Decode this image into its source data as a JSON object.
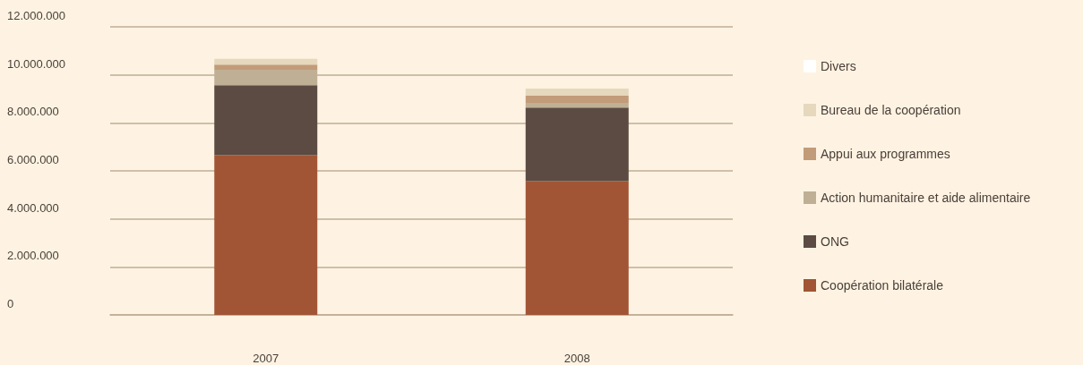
{
  "chart_data": {
    "type": "bar",
    "stacked": true,
    "categories": [
      "2007",
      "2008"
    ],
    "series": [
      {
        "name": "Coopération bilatérale",
        "color": "#a15535",
        "values": [
          6650000,
          5570000
        ]
      },
      {
        "name": "ONG",
        "color": "#5b4b42",
        "values": [
          2920000,
          3070000
        ]
      },
      {
        "name": "Action humanitaire et aide alimentaire",
        "color": "#bfaf95",
        "values": [
          640000,
          190000
        ]
      },
      {
        "name": "Appui aux programmes",
        "color": "#c29b79",
        "values": [
          220000,
          300000
        ]
      },
      {
        "name": "Bureau de la coopération",
        "color": "#e5d8bc",
        "values": [
          240000,
          300000
        ]
      },
      {
        "name": "Divers",
        "color": "#ffffff",
        "values": [
          0,
          0
        ]
      }
    ],
    "ylim": [
      0,
      12000000
    ],
    "yticks": [
      {
        "value": 0,
        "label": "0"
      },
      {
        "value": 2000000,
        "label": "2.000.000"
      },
      {
        "value": 4000000,
        "label": "4.000.000"
      },
      {
        "value": 6000000,
        "label": "6.000.000"
      },
      {
        "value": 8000000,
        "label": "8.000.000"
      },
      {
        "value": 10000000,
        "label": "10.000.000"
      },
      {
        "value": 12000000,
        "label": "12.000.000"
      }
    ],
    "grid": "y",
    "legend": "right"
  }
}
